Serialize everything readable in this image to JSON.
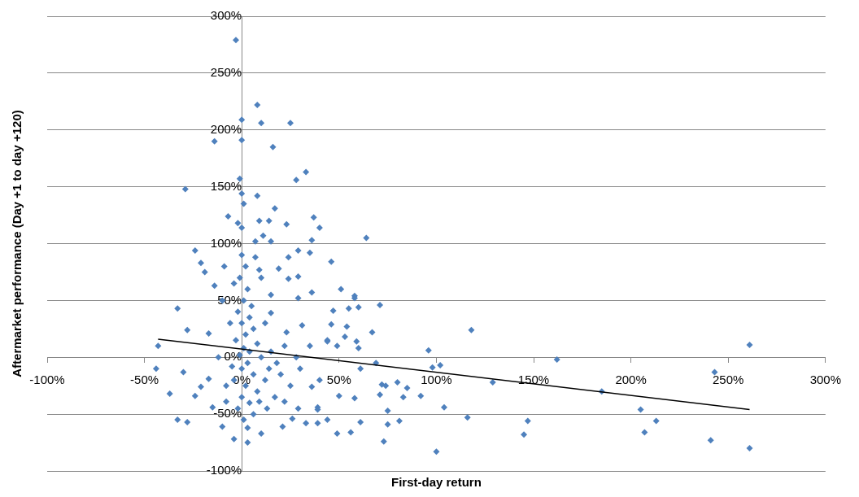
{
  "chart_data": {
    "type": "scatter",
    "xlabel": "First-day return",
    "ylabel": "Aftermarket performance (Day +1 to day +120)",
    "xlim": [
      -100,
      300
    ],
    "ylim": [
      -100,
      300
    ],
    "xticks": [
      {
        "value": -100,
        "label": "-100%"
      },
      {
        "value": -50,
        "label": "-50%"
      },
      {
        "value": 0,
        "label": "0%"
      },
      {
        "value": 50,
        "label": "50%"
      },
      {
        "value": 100,
        "label": "100%"
      },
      {
        "value": 150,
        "label": "150%"
      },
      {
        "value": 200,
        "label": "200%"
      },
      {
        "value": 250,
        "label": "250%"
      },
      {
        "value": 300,
        "label": "300%"
      }
    ],
    "yticks": [
      {
        "value": -100,
        "label": "-100%"
      },
      {
        "value": -50,
        "label": "-50%"
      },
      {
        "value": 0,
        "label": "0%"
      },
      {
        "value": 50,
        "label": "50%"
      },
      {
        "value": 100,
        "label": "100%"
      },
      {
        "value": 150,
        "label": "150%"
      },
      {
        "value": 200,
        "label": "200%"
      },
      {
        "value": 250,
        "label": "250%"
      },
      {
        "value": 300,
        "label": "300%"
      }
    ],
    "grid": "y",
    "legend": false,
    "series": [
      {
        "marker": "diamond",
        "color": "#4f81bd",
        "x": [
          -3,
          8,
          0,
          10,
          25,
          -14,
          0,
          16,
          33,
          28,
          -1,
          -29,
          0,
          8,
          1,
          17,
          -7,
          37,
          -2,
          9,
          14,
          23,
          40,
          0,
          11,
          36,
          64,
          7,
          15,
          -24,
          -21,
          -19,
          -9,
          29,
          24,
          35,
          46,
          19,
          24,
          29,
          9,
          -14,
          -4,
          -33,
          -28,
          -17,
          -43,
          36,
          29,
          51,
          58,
          60,
          46,
          54,
          67,
          44,
          49,
          31,
          15,
          23,
          14,
          61,
          -30,
          -44,
          -37,
          -24,
          -17,
          -21,
          -33,
          -28,
          -10,
          -4,
          3,
          10,
          21,
          26,
          33,
          39,
          44,
          49,
          56,
          61,
          50,
          58,
          36,
          29,
          39,
          22,
          9,
          -8,
          -15,
          0,
          2,
          -1,
          3,
          1,
          5,
          -2,
          4,
          0,
          6,
          2,
          -3,
          8,
          1,
          4,
          -1,
          10,
          3,
          0,
          6,
          -4,
          2,
          8,
          0,
          4,
          -2,
          6,
          1,
          3,
          -5,
          12,
          15,
          18,
          12,
          15,
          10,
          7,
          -6,
          -8,
          20,
          25,
          22,
          28,
          30,
          35,
          40,
          -12,
          -10,
          13,
          17,
          58,
          47,
          55,
          71,
          53,
          59,
          44,
          60,
          118,
          96,
          102,
          98,
          162,
          261,
          243,
          129,
          185,
          69,
          72,
          74,
          80,
          85,
          71,
          83,
          92,
          39,
          75,
          104,
          116,
          147,
          205,
          213,
          75,
          81,
          73,
          100,
          145,
          207,
          241,
          261
        ],
        "values": [
          279,
          222,
          209,
          206,
          206,
          190,
          191,
          185,
          163,
          156,
          157,
          148,
          144,
          142,
          135,
          131,
          124,
          123,
          118,
          120,
          120,
          117,
          114,
          114,
          107,
          103,
          105,
          102,
          102,
          94,
          83,
          75,
          80,
          94,
          88,
          92,
          84,
          78,
          69,
          71,
          77,
          63,
          65,
          43,
          24,
          21,
          10,
          57,
          52,
          60,
          54,
          44,
          29,
          27,
          22,
          15,
          10,
          28,
          39,
          22,
          -10,
          -10,
          -13,
          -10,
          -32,
          -34,
          -19,
          -26,
          -55,
          -57,
          -61,
          -72,
          -75,
          -67,
          -61,
          -54,
          -58,
          -58,
          -55,
          -67,
          -66,
          -57,
          -34,
          -36,
          -26,
          -45,
          -44,
          -39,
          -39,
          -39,
          -44,
          90,
          80,
          70,
          60,
          50,
          45,
          40,
          35,
          30,
          25,
          20,
          15,
          12,
          8,
          5,
          2,
          0,
          -5,
          -10,
          -15,
          -20,
          -25,
          -30,
          -35,
          -40,
          -45,
          -50,
          -55,
          -62,
          -8,
          -20,
          5,
          -5,
          30,
          55,
          70,
          88,
          30,
          -25,
          -15,
          -25,
          10,
          0,
          -10,
          10,
          -20,
          0,
          50,
          -45,
          -35,
          52,
          41,
          43,
          46,
          18,
          14,
          14,
          8,
          24,
          6,
          -7,
          -9,
          -2,
          11,
          -13,
          -22,
          -30,
          -5,
          -24,
          -25,
          -22,
          -27,
          -33,
          -35,
          -34,
          -46,
          -47,
          -44,
          -53,
          -56,
          -46,
          -56,
          -59,
          -56,
          -74,
          -83,
          -68,
          -66,
          -73,
          -80
        ]
      },
      {
        "type": "line",
        "marker": "none",
        "color": "#000000",
        "x": [
          -43,
          261
        ],
        "values": [
          16,
          -46
        ]
      }
    ]
  }
}
